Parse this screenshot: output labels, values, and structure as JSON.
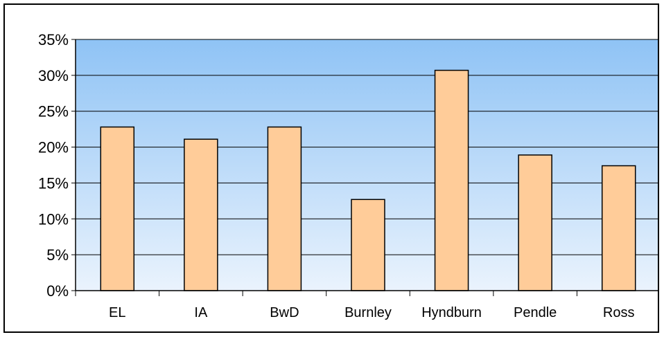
{
  "chart_data": {
    "type": "bar",
    "title": "",
    "xlabel": "",
    "ylabel": "",
    "categories": [
      "EL",
      "IA",
      "BwD",
      "Burnley",
      "Hyndburn",
      "Pendle",
      "Ross"
    ],
    "values": [
      0.228,
      0.211,
      0.228,
      0.127,
      0.307,
      0.189,
      0.174
    ],
    "ylim": [
      0,
      0.35
    ],
    "yticks": [
      0,
      0.05,
      0.1,
      0.15,
      0.2,
      0.25,
      0.3,
      0.35
    ],
    "ytick_labels": [
      "0%",
      "5%",
      "10%",
      "15%",
      "20%",
      "25%",
      "30%",
      "35%"
    ],
    "grid": true,
    "legend": "none",
    "colors": {
      "bar_fill": "#ffcc99",
      "bar_stroke": "#000000",
      "plot_top": "#8fc3f5",
      "plot_bottom": "#eaf3fd",
      "gridline": "#000000"
    }
  }
}
